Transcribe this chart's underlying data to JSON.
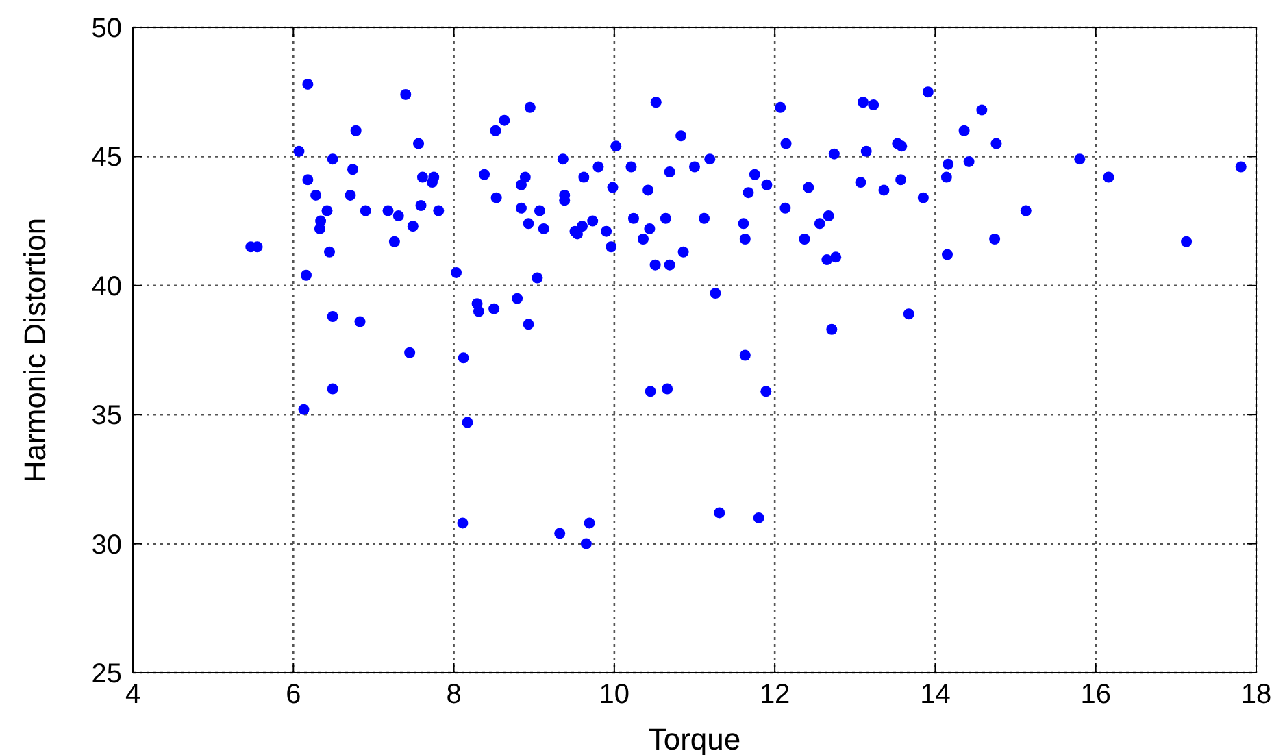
{
  "chart_data": {
    "type": "scatter",
    "xlabel": "Torque",
    "ylabel": "Harmonic Distortion",
    "xlim": [
      4,
      18
    ],
    "ylim": [
      25,
      50
    ],
    "xticks": [
      4,
      6,
      8,
      10,
      12,
      14,
      16,
      18
    ],
    "yticks": [
      25,
      30,
      35,
      40,
      45,
      50
    ],
    "grid": true,
    "marker": "circle",
    "series": [
      {
        "color": "#0000ff",
        "x": [
          5.47,
          5.55,
          6.18,
          6.07,
          6.49,
          6.78,
          7.4,
          7.56,
          6.18,
          6.74,
          6.28,
          6.71,
          6.42,
          6.34,
          6.33,
          6.45,
          6.16,
          6.9,
          7.18,
          7.31,
          7.26,
          7.49,
          7.61,
          7.75,
          7.73,
          7.59,
          7.81,
          6.49,
          6.83,
          7.45,
          6.49,
          6.13,
          8.03,
          8.12,
          8.17,
          8.11,
          9.32,
          8.29,
          8.31,
          8.5,
          8.79,
          8.93,
          9.04,
          8.52,
          8.63,
          8.95,
          9.36,
          8.38,
          8.89,
          8.84,
          8.53,
          8.84,
          9.07,
          8.93,
          9.12,
          9.38,
          9.38,
          9.51,
          9.54,
          9.6,
          9.73,
          9.62,
          9.8,
          10.02,
          9.98,
          9.9,
          9.96,
          10.52,
          10.83,
          10.21,
          10.69,
          10.42,
          11.0,
          11.19,
          10.24,
          10.44,
          10.36,
          10.64,
          11.12,
          10.51,
          10.69,
          10.86,
          11.26,
          11.63,
          10.45,
          10.66,
          11.89,
          11.31,
          11.8,
          9.69,
          9.65,
          12.07,
          12.14,
          11.75,
          11.67,
          11.9,
          11.61,
          11.63,
          12.13,
          12.42,
          12.37,
          12.56,
          12.67,
          12.65,
          12.76,
          12.71,
          12.74,
          13.1,
          13.23,
          13.14,
          13.07,
          13.36,
          13.53,
          13.58,
          13.57,
          13.91,
          14.58,
          14.36,
          14.76,
          14.16,
          14.42,
          14.14,
          13.85,
          15.8,
          16.16,
          17.81,
          15.13,
          14.74,
          14.15,
          17.13,
          13.67
        ],
        "values": [
          41.5,
          41.5,
          47.8,
          45.2,
          44.9,
          46.0,
          47.4,
          45.5,
          44.1,
          44.5,
          43.5,
          43.5,
          42.9,
          42.5,
          42.2,
          41.3,
          40.4,
          42.9,
          42.9,
          42.7,
          41.7,
          42.3,
          44.2,
          44.2,
          44.0,
          43.1,
          42.9,
          38.8,
          38.6,
          37.4,
          36.0,
          35.2,
          40.5,
          37.2,
          34.7,
          30.8,
          30.4,
          39.3,
          39.0,
          39.1,
          39.5,
          38.5,
          40.3,
          46.0,
          46.4,
          46.9,
          44.9,
          44.3,
          44.2,
          43.9,
          43.4,
          43.0,
          42.9,
          42.4,
          42.2,
          43.5,
          43.3,
          42.1,
          42.0,
          42.3,
          42.5,
          44.2,
          44.6,
          45.4,
          43.8,
          42.1,
          41.5,
          47.1,
          45.8,
          44.6,
          44.4,
          43.7,
          44.6,
          44.9,
          42.6,
          42.2,
          41.8,
          42.6,
          42.6,
          40.8,
          40.8,
          41.3,
          39.7,
          37.3,
          35.9,
          36.0,
          35.9,
          31.2,
          31.0,
          30.8,
          30.0,
          46.9,
          45.5,
          44.3,
          43.6,
          43.9,
          42.4,
          41.8,
          43.0,
          43.8,
          41.8,
          42.4,
          42.7,
          41.0,
          41.1,
          38.3,
          45.1,
          47.1,
          47.0,
          45.2,
          44.0,
          43.7,
          45.5,
          45.4,
          44.1,
          47.5,
          46.8,
          46.0,
          45.5,
          44.7,
          44.8,
          44.2,
          43.4,
          44.9,
          44.2,
          44.6,
          42.9,
          41.8,
          41.2,
          41.7,
          38.9
        ]
      }
    ]
  }
}
